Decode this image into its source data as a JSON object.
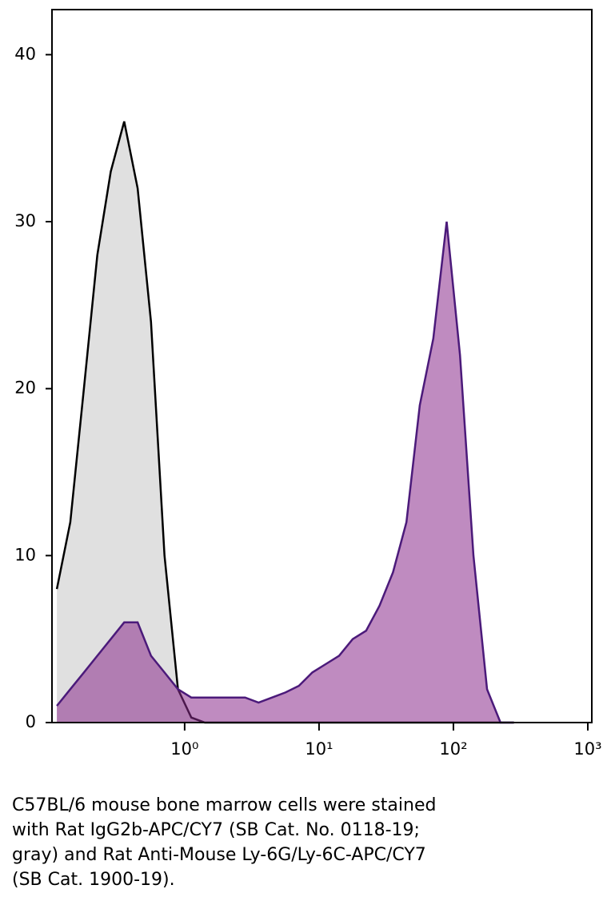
{
  "chart_data": {
    "type": "area",
    "x": [
      0.112,
      0.141,
      0.178,
      0.224,
      0.282,
      0.355,
      0.447,
      0.562,
      0.708,
      0.891,
      1.12,
      1.41,
      1.78,
      2.24,
      2.82,
      3.55,
      4.47,
      5.62,
      7.08,
      8.91,
      11.2,
      14.1,
      17.8,
      22.4,
      28.2,
      35.5,
      44.7,
      56.2,
      70.8,
      89.1,
      112,
      141,
      178,
      224,
      282
    ],
    "series": [
      {
        "color": "#e0e0e0",
        "line_color": "#000000",
        "values": [
          8,
          12,
          20,
          28,
          33,
          36,
          32,
          24,
          10,
          2,
          0.3,
          0,
          0,
          0,
          0,
          0,
          0,
          0,
          0,
          0,
          0,
          0,
          0,
          0,
          0,
          0,
          0,
          0,
          0,
          0,
          0,
          0,
          0,
          0,
          0
        ]
      },
      {
        "color": "#8a2b8c",
        "line_color": "#4b1a7a",
        "values": [
          1,
          2,
          3,
          4,
          5,
          6,
          6,
          4,
          3,
          2,
          1.5,
          1.5,
          1.5,
          1.5,
          1.5,
          1.2,
          1.5,
          1.8,
          2.2,
          3,
          3.5,
          4,
          5,
          5.5,
          7,
          9,
          12,
          19,
          23,
          30,
          22,
          10,
          2,
          0,
          0
        ]
      }
    ],
    "log_x": true,
    "xlim": [
      0.103,
      1071
    ],
    "ylim": [
      0,
      42.7
    ],
    "xticks": [
      {
        "value": 1,
        "label": "10⁰"
      },
      {
        "value": 10,
        "label": "10¹"
      },
      {
        "value": 100,
        "label": "10²"
      },
      {
        "value": 1000,
        "label": "10³"
      }
    ],
    "yticks": [
      0,
      10,
      20,
      30,
      40
    ],
    "caption": [
      "C57BL/6 mouse bone marrow cells were stained",
      "with Rat IgG2b-APC/CY7 (SB Cat. No. 0118-19;",
      "gray) and Rat Anti-Mouse Ly-6G/Ly-6C-APC/CY7",
      "(SB Cat. 1900-19)."
    ]
  }
}
